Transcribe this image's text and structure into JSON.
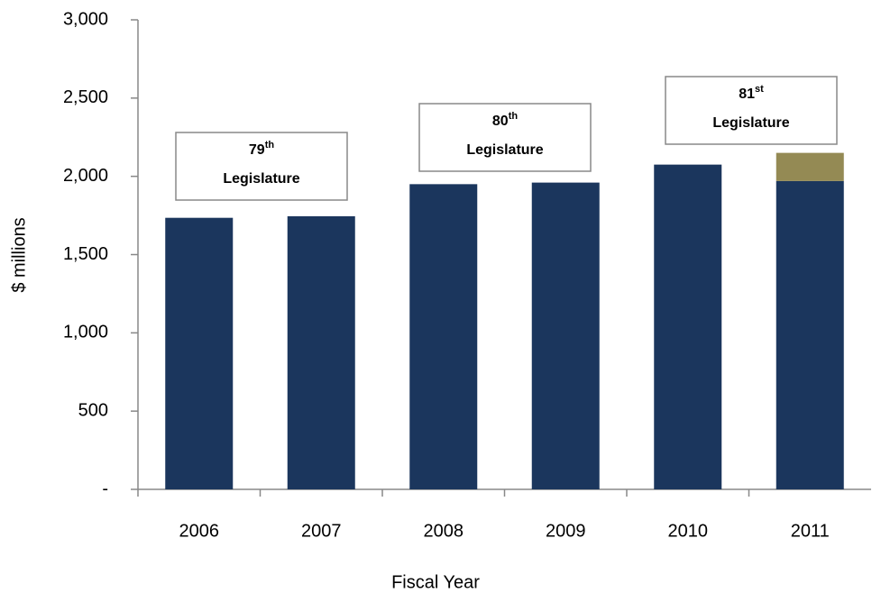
{
  "chart_data": {
    "type": "bar",
    "stacked": true,
    "categories": [
      "2006",
      "2007",
      "2008",
      "2009",
      "2010",
      "2011"
    ],
    "series": [
      {
        "color": "#1b365d",
        "values": [
          1735,
          1745,
          1950,
          1960,
          2075,
          1970
        ]
      },
      {
        "color": "#948a54",
        "values": [
          null,
          null,
          null,
          null,
          null,
          180
        ]
      }
    ],
    "y_label": "$ millions",
    "x_label": "Fiscal Year",
    "ylim": [
      0,
      3000
    ],
    "yticks": [
      {
        "value": 0,
        "label": "-"
      },
      500,
      {
        "value": 1000,
        "label": "1,000"
      },
      {
        "value": 1500,
        "label": "1,500"
      },
      {
        "value": 2000,
        "label": "2,000"
      },
      {
        "value": 2500,
        "label": "2,500"
      },
      {
        "value": 3000,
        "label": "3,000"
      }
    ],
    "grid": false,
    "annotations": [
      {
        "ordinal": "79",
        "suffix": "th",
        "text": "Legislature"
      },
      {
        "ordinal": "80",
        "suffix": "th",
        "text": "Legislature"
      },
      {
        "ordinal": "81",
        "suffix": "st",
        "text": "Legislature"
      }
    ]
  }
}
